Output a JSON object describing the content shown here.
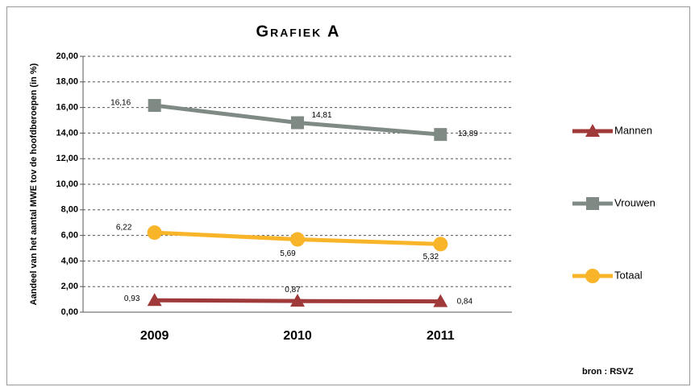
{
  "chart_data": {
    "type": "line",
    "title": "Grafiek A",
    "y_label": "Aandeel van het aantal MWE tov de hoofdberoepen (in %)",
    "source": "bron : RSVZ",
    "categories": [
      "2009",
      "2010",
      "2011"
    ],
    "series": [
      {
        "name": "Mannen",
        "color": "#a0393a",
        "marker": "triangle",
        "values": [
          0.93,
          0.87,
          0.84
        ],
        "value_labels": [
          "0,93",
          "0,87",
          "0,84"
        ]
      },
      {
        "name": "Vrouwen",
        "color": "#7f8a84",
        "marker": "square",
        "values": [
          16.16,
          14.81,
          13.89
        ],
        "value_labels": [
          "16,16",
          "14,81",
          "13,89"
        ]
      },
      {
        "name": "Totaal",
        "color": "#f9b52a",
        "marker": "circle",
        "values": [
          6.22,
          5.69,
          5.32
        ],
        "value_labels": [
          "6,22",
          "5,69",
          "5,32"
        ]
      }
    ],
    "ylim": [
      0,
      20
    ],
    "yticks": [
      {
        "value": 0,
        "label": "0,00"
      },
      {
        "value": 2,
        "label": "2,00"
      },
      {
        "value": 4,
        "label": "4,00"
      },
      {
        "value": 6,
        "label": "6,00"
      },
      {
        "value": 8,
        "label": "8,00"
      },
      {
        "value": 10,
        "label": "10,00"
      },
      {
        "value": 12,
        "label": "12,00"
      },
      {
        "value": 14,
        "label": "14,00"
      },
      {
        "value": 16,
        "label": "16,00"
      },
      {
        "value": 18,
        "label": "18,00"
      },
      {
        "value": 20,
        "label": "20,00"
      }
    ],
    "grid": true,
    "legend": "right"
  }
}
